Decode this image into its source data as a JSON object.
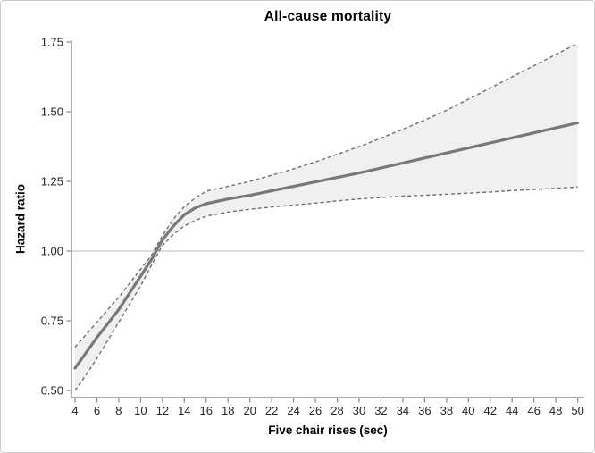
{
  "figure": {
    "background": "#ffffff",
    "border_color": "#cccccc"
  },
  "chart_data": {
    "type": "line",
    "title": "All-cause mortality",
    "xlabel": "Five chair rises (sec)",
    "ylabel": "Hazard ratio",
    "xlim": [
      4,
      50
    ],
    "ylim": [
      0.5,
      1.75
    ],
    "grid": "off",
    "legend": "none",
    "x_ticks": [
      4,
      6,
      8,
      10,
      12,
      14,
      16,
      18,
      20,
      22,
      24,
      26,
      28,
      30,
      32,
      34,
      36,
      38,
      40,
      42,
      44,
      46,
      48,
      50
    ],
    "y_ticks": [
      0.5,
      0.75,
      1.0,
      1.25,
      1.5,
      1.75
    ],
    "y_tick_labels": [
      "0.50",
      "0.75",
      "1.00",
      "1.25",
      "1.50",
      "1.75"
    ],
    "reference_line_y": 1.0,
    "x": [
      4,
      5,
      6,
      7,
      8,
      9,
      10,
      11,
      12,
      13,
      14,
      15,
      16,
      18,
      20,
      22,
      24,
      26,
      28,
      30,
      32,
      34,
      36,
      38,
      40,
      42,
      44,
      46,
      48,
      50
    ],
    "series": [
      {
        "name": "hazard-ratio",
        "style": "solid",
        "values": [
          0.58,
          0.635,
          0.69,
          0.74,
          0.79,
          0.85,
          0.91,
          0.97,
          1.04,
          1.09,
          1.13,
          1.155,
          1.17,
          1.187,
          1.2,
          1.216,
          1.232,
          1.248,
          1.264,
          1.28,
          1.298,
          1.316,
          1.334,
          1.352,
          1.37,
          1.388,
          1.406,
          1.424,
          1.442,
          1.46
        ]
      },
      {
        "name": "ci-lower",
        "style": "dashed",
        "values": [
          0.5,
          0.555,
          0.615,
          0.68,
          0.745,
          0.81,
          0.875,
          0.95,
          1.02,
          1.06,
          1.09,
          1.11,
          1.125,
          1.14,
          1.15,
          1.158,
          1.165,
          1.172,
          1.18,
          1.187,
          1.192,
          1.197,
          1.2,
          1.204,
          1.208,
          1.212,
          1.217,
          1.221,
          1.225,
          1.23
        ]
      },
      {
        "name": "ci-upper",
        "style": "dashed",
        "values": [
          0.655,
          0.7,
          0.745,
          0.79,
          0.835,
          0.885,
          0.935,
          0.985,
          1.055,
          1.115,
          1.16,
          1.19,
          1.215,
          1.232,
          1.25,
          1.272,
          1.295,
          1.32,
          1.347,
          1.375,
          1.405,
          1.437,
          1.47,
          1.505,
          1.545,
          1.585,
          1.625,
          1.665,
          1.705,
          1.745
        ]
      }
    ],
    "band": {
      "between": [
        "ci-lower",
        "ci-upper"
      ],
      "fill": "#f0f0f0"
    },
    "colors": {
      "line": "#787878",
      "ci_dash": "#6f6f6f",
      "band_fill": "#f0f0f0",
      "axis": "#8e8e8e",
      "reference_line": "#c6c6c6",
      "tick_label": "#262626"
    }
  }
}
